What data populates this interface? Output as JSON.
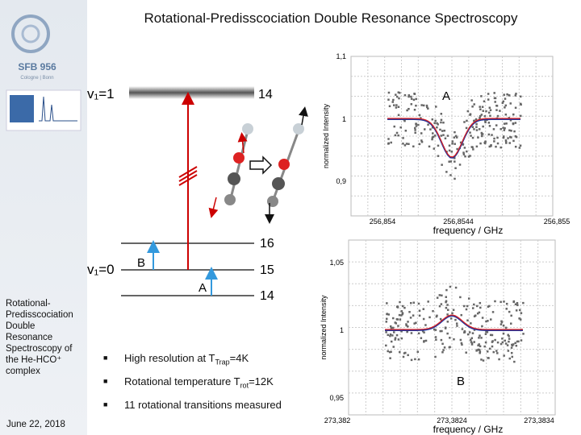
{
  "title": "Rotational-Predisscociation Double Resonance Spectroscopy",
  "sidebar": {
    "logo": "SFB 956",
    "logo_sub": "Cologne | Bonn",
    "description": "Rotational-Predisscociation Double Resonance Spectroscopy of the He-HCO⁺ complex",
    "date": "June 22, 2018"
  },
  "diagram": {
    "upper_state": "v₁=1",
    "upper_level": "14",
    "lower_state": "v₁=0",
    "levels": [
      "16",
      "15",
      "14"
    ],
    "transition_b": "B",
    "transition_a": "A"
  },
  "bullets": [
    {
      "before": "High resolution at T",
      "sub": "Trap",
      "after": "=4K"
    },
    {
      "before": "Rotational temperature T",
      "sub": "rot",
      "after": "=12K"
    },
    {
      "before": "11 rotational transitions measured"
    }
  ],
  "plot_a": {
    "label": "A",
    "y_label": "normalized Intensity",
    "x_label": "frequency / GHz",
    "yticks": [
      "1,1",
      "1",
      "0,9"
    ],
    "xticks": [
      "256,854",
      "256,8544",
      "256,855"
    ]
  },
  "plot_b": {
    "label": "B",
    "y_label": "normalized Intensity",
    "x_label": "frequency / GHz",
    "yticks": [
      "1,05",
      "1",
      "0,95"
    ],
    "xticks": [
      "273,382",
      "273,3824",
      "273,3834"
    ]
  }
}
